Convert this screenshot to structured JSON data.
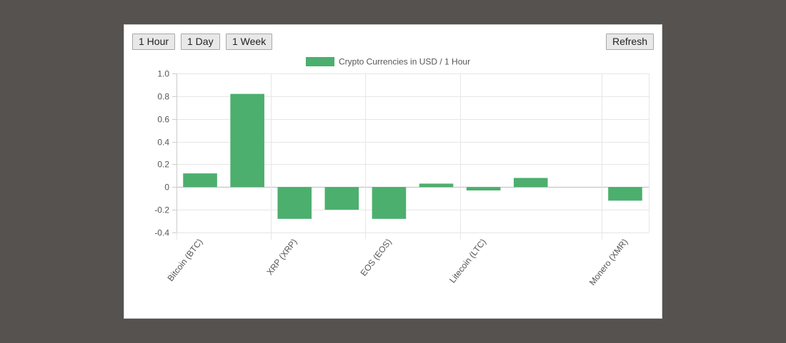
{
  "buttons": {
    "hour": "1 Hour",
    "day": "1 Day",
    "week": "1 Week",
    "refresh": "Refresh"
  },
  "chart_data": {
    "type": "bar",
    "categories": [
      "Bitcoin (BTC)",
      "",
      "XRP (XRP)",
      "",
      "EOS (EOS)",
      "",
      "Litecoin (LTC)",
      "",
      "",
      "Monero (XMR)"
    ],
    "series": [
      {
        "name": "Crypto Currencies in USD / 1 Hour",
        "values": [
          0.12,
          0.82,
          -0.28,
          -0.2,
          -0.28,
          0.03,
          -0.03,
          0.08,
          0,
          -0.12
        ]
      }
    ],
    "ylim": [
      -0.4,
      1.0
    ],
    "yticks": [
      "1.0",
      "0.8",
      "0.6",
      "0.4",
      "0.2",
      "0",
      "-0.2",
      "-0.4"
    ],
    "bar_color": "#4caf6e",
    "grid": true,
    "legend": "top-center"
  }
}
